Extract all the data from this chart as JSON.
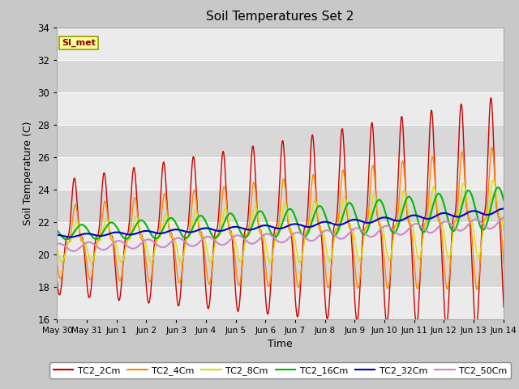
{
  "title": "Soil Temperatures Set 2",
  "xlabel": "Time",
  "ylabel": "Soil Temperature (C)",
  "ylim": [
    16,
    34
  ],
  "yticks": [
    16,
    18,
    20,
    22,
    24,
    26,
    28,
    30,
    32,
    34
  ],
  "plot_bg_light": "#f2f2f2",
  "plot_bg_dark": "#e0e0e0",
  "fig_bg": "#c8c8c8",
  "annotation_text": "SI_met",
  "annotation_bg": "#ffff99",
  "annotation_border": "#999900",
  "legend": [
    "TC2_2Cm",
    "TC2_4Cm",
    "TC2_8Cm",
    "TC2_16Cm",
    "TC2_32Cm",
    "TC2_50Cm"
  ],
  "line_colors": [
    "#cc0000",
    "#ff8800",
    "#dddd00",
    "#00bb00",
    "#0000cc",
    "#cc88cc"
  ],
  "line_widths": [
    1.0,
    1.0,
    1.0,
    1.5,
    1.5,
    1.5
  ],
  "xticklabels": [
    "May 30",
    "May 31",
    "Jun 1",
    "Jun 2",
    "Jun 3",
    "Jun 4",
    "Jun 5",
    "Jun 6",
    "Jun 7",
    "Jun 8",
    "Jun 9",
    "Jun 10",
    "Jun 11",
    "Jun 12",
    "Jun 13",
    "Jun 14"
  ],
  "n_days": 16,
  "pts_per_day": 144
}
